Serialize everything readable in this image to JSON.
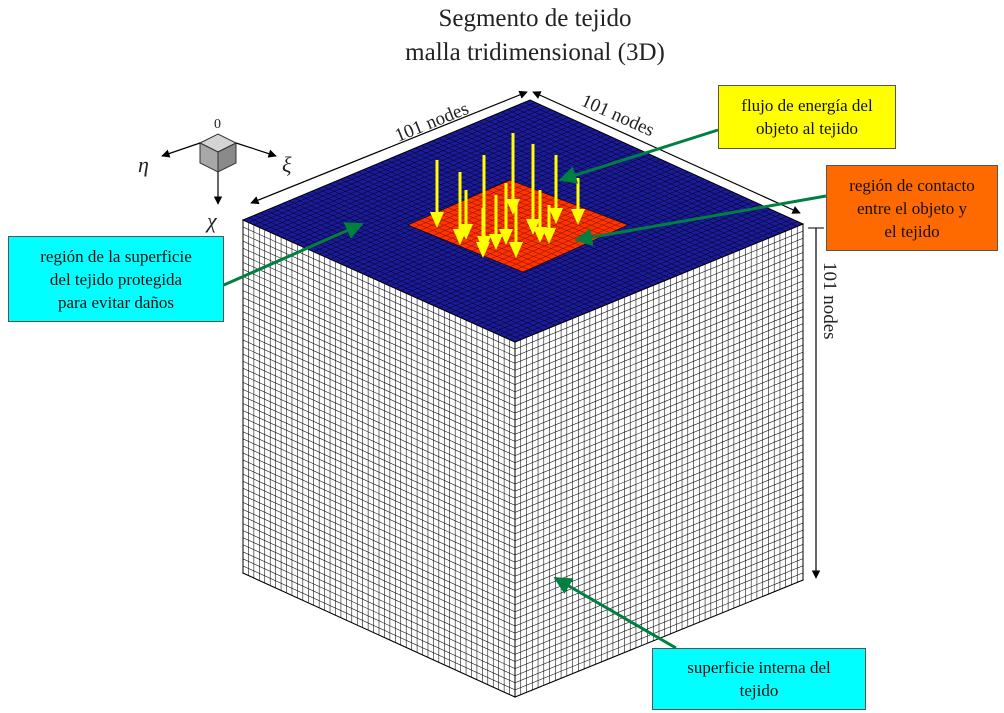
{
  "title": {
    "line1": "Segmento de tejido",
    "line2": "malla tridimensional (3D)"
  },
  "dimensions": {
    "left_top_edge": "101 nodes",
    "right_top_edge": "101 nodes",
    "vertical_edge": "101 nodes"
  },
  "axes": {
    "origin": "0",
    "eta": "η",
    "xi": "ξ",
    "chi": "χ"
  },
  "callouts": {
    "energy_flow": {
      "lines": [
        "flujo de energía del",
        "objeto al tejido"
      ],
      "bg": "#ffff00"
    },
    "contact_region": {
      "lines": [
        "región de contacto",
        "entre el objeto y",
        "el tejido"
      ],
      "bg": "#ff6a00"
    },
    "protected_region": {
      "lines": [
        "región de la superficie",
        "del tejido protegida",
        "para evitar daños"
      ],
      "bg": "#00ffff"
    },
    "inner_surface": {
      "lines": [
        "superficie interna del",
        "tejido"
      ],
      "bg": "#00ffff"
    }
  },
  "colors": {
    "mesh_blue": "#1a1a9a",
    "mesh_line": "#000000",
    "contact_red": "#ff3300",
    "arrow_yellow": "#ffff00",
    "leader_green": "#008040",
    "wall_bg": "#ffffff"
  }
}
